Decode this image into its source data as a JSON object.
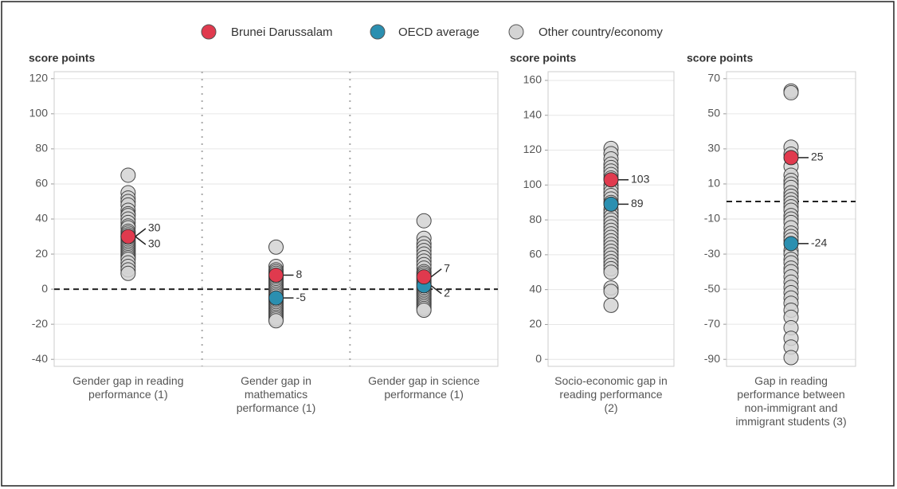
{
  "chart_data": [
    {
      "type": "strip",
      "ylabel": "score points",
      "categories": [
        "Gender gap in reading performance (1)",
        "Gender gap in mathematics performance (1)",
        "Gender gap in science performance (1)"
      ],
      "series": [
        {
          "name": "Brunei Darussalam",
          "color": "#e03a4e",
          "values": [
            30,
            8,
            7
          ]
        },
        {
          "name": "OECD average",
          "color": "#2b8fb0",
          "values": [
            30,
            -5,
            2
          ]
        },
        {
          "name": "Other country/economy",
          "color": "#d4d4d4",
          "values": [
            [
              65,
              55,
              52,
              50,
              48,
              45,
              43,
              42,
              40,
              38,
              36,
              35,
              33,
              32,
              31,
              29,
              28,
              27,
              26,
              25,
              24,
              23,
              22,
              21,
              20,
              19,
              18,
              17,
              15,
              13,
              11,
              9
            ],
            [
              24,
              13,
              11,
              10,
              9,
              7,
              6,
              5,
              4,
              3,
              2,
              1,
              0,
              -1,
              -2,
              -3,
              -4,
              -6,
              -7,
              -8,
              -9,
              -10,
              -11,
              -12,
              -13,
              -14,
              -15,
              -16,
              -17,
              -18
            ],
            [
              39,
              29,
              26,
              24,
              22,
              20,
              18,
              16,
              14,
              12,
              10,
              9,
              8,
              6,
              5,
              4,
              3,
              1,
              0,
              -1,
              -2,
              -3,
              -4,
              -5,
              -6,
              -7,
              -8,
              -9,
              -10,
              -11,
              -12
            ]
          ]
        }
      ],
      "ylim": [
        -44,
        124
      ],
      "yticks": [
        -40,
        -20,
        0,
        20,
        40,
        60,
        80,
        100,
        120
      ],
      "grid": true,
      "reference_line": 0
    },
    {
      "type": "strip",
      "ylabel": "score points",
      "categories": [
        "Socio-economic gap in reading performance (2)"
      ],
      "series": [
        {
          "name": "Brunei Darussalam",
          "color": "#e03a4e",
          "values": [
            103
          ]
        },
        {
          "name": "OECD average",
          "color": "#2b8fb0",
          "values": [
            89
          ]
        },
        {
          "name": "Other country/economy",
          "color": "#d4d4d4",
          "values": [
            [
              121,
              118,
              115,
              112,
              110,
              108,
              106,
              104,
              100,
              98,
              96,
              94,
              92,
              90,
              86,
              84,
              82,
              80,
              78,
              76,
              74,
              72,
              70,
              68,
              66,
              64,
              62,
              60,
              58,
              56,
              54,
              52,
              50,
              41,
              39,
              31
            ]
          ]
        }
      ],
      "ylim": [
        -4,
        165
      ],
      "yticks": [
        0,
        20,
        40,
        60,
        80,
        100,
        120,
        140,
        160
      ],
      "grid": true
    },
    {
      "type": "strip",
      "ylabel": "score points",
      "categories": [
        "Gap in reading performance between non-immigrant and immigrant students (3)"
      ],
      "series": [
        {
          "name": "Brunei Darussalam",
          "color": "#e03a4e",
          "values": [
            25
          ]
        },
        {
          "name": "OECD average",
          "color": "#2b8fb0",
          "values": [
            -24
          ]
        },
        {
          "name": "Other country/economy",
          "color": "#d4d4d4",
          "values": [
            [
              63,
              62,
              31,
              27,
              20,
              15,
              12,
              10,
              8,
              5,
              3,
              1,
              -1,
              -3,
              -5,
              -8,
              -10,
              -12,
              -15,
              -18,
              -20,
              -22,
              -28,
              -30,
              -33,
              -35,
              -38,
              -40,
              -43,
              -46,
              -49,
              -52,
              -55,
              -58,
              -62,
              -66,
              -72,
              -78,
              -83,
              -89
            ]
          ]
        }
      ],
      "ylim": [
        -94,
        74
      ],
      "yticks": [
        -90,
        -70,
        -50,
        -30,
        -10,
        10,
        30,
        50,
        70
      ],
      "grid": true,
      "reference_line": 0
    }
  ]
}
